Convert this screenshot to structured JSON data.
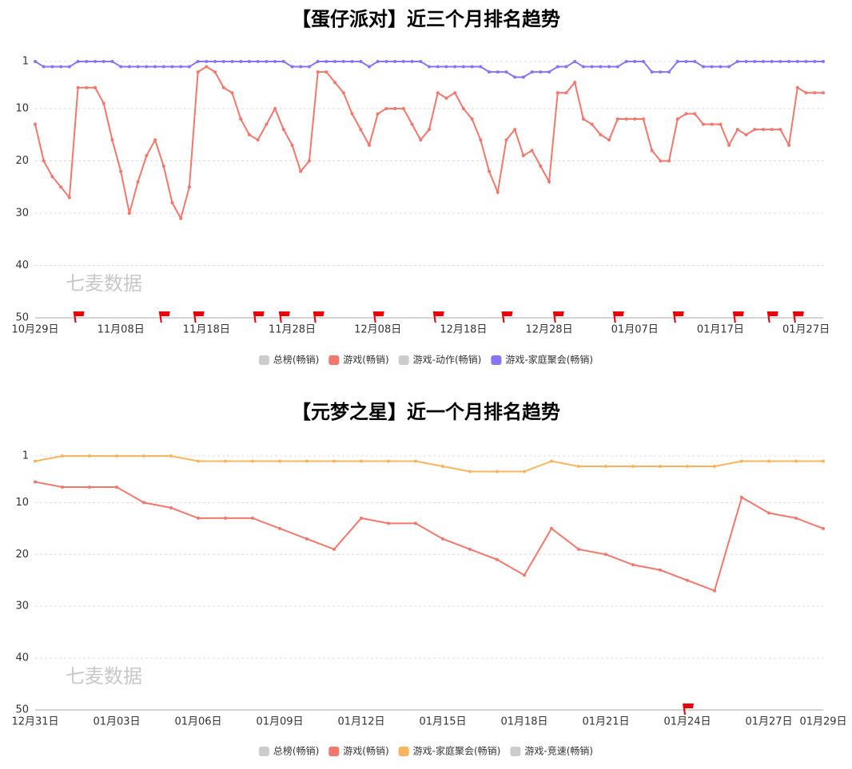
{
  "chart_data": [
    {
      "type": "line",
      "title": "【蛋仔派对】近三个月排名趋势",
      "watermark": "七麦数据",
      "categories": [
        "10月29日",
        null,
        null,
        null,
        null,
        null,
        null,
        null,
        null,
        null,
        "11月08日",
        null,
        null,
        null,
        null,
        null,
        null,
        null,
        null,
        null,
        "11月18日",
        null,
        null,
        null,
        null,
        null,
        null,
        null,
        null,
        null,
        "11月28日",
        null,
        null,
        null,
        null,
        null,
        null,
        null,
        null,
        null,
        "12月08日",
        null,
        null,
        null,
        null,
        null,
        null,
        null,
        null,
        null,
        "12月18日",
        null,
        null,
        null,
        null,
        null,
        null,
        null,
        null,
        null,
        "12月28日",
        null,
        null,
        null,
        null,
        null,
        null,
        null,
        null,
        null,
        "01月07日",
        null,
        null,
        null,
        null,
        null,
        null,
        null,
        null,
        null,
        "01月17日",
        null,
        null,
        null,
        null,
        null,
        null,
        null,
        null,
        null,
        "01月27日",
        null,
        null
      ],
      "series": [
        {
          "name": "总榜(畅销)",
          "color": "#cccccc",
          "visible": false
        },
        {
          "name": "游戏(畅销)",
          "color": "#f4776c",
          "visible": true,
          "values": [
            13,
            20,
            23,
            25,
            27,
            6,
            6,
            6,
            9,
            16,
            22,
            30,
            24,
            19,
            16,
            21,
            28,
            31,
            25,
            3,
            2,
            3,
            6,
            7,
            12,
            15,
            16,
            13,
            10,
            14,
            17,
            22,
            20,
            3,
            3,
            5,
            7,
            11,
            14,
            17,
            11,
            10,
            10,
            10,
            13,
            16,
            14,
            7,
            8,
            7,
            10,
            12,
            16,
            22,
            26,
            16,
            14,
            19,
            18,
            21,
            24,
            7,
            7,
            5,
            12,
            13,
            15,
            16,
            12,
            12,
            12,
            12,
            18,
            20,
            20,
            12,
            11,
            11,
            13,
            13,
            13,
            17,
            14,
            15,
            14,
            14,
            14,
            14,
            17,
            6,
            7,
            7,
            7
          ]
        },
        {
          "name": "游戏-动作(畅销)",
          "color": "#cccccc",
          "visible": false
        },
        {
          "name": "游戏-家庭聚会(畅销)",
          "color": "#8676f6",
          "visible": true,
          "values": [
            1,
            2,
            2,
            2,
            2,
            1,
            1,
            1,
            1,
            1,
            2,
            2,
            2,
            2,
            2,
            2,
            2,
            2,
            2,
            1,
            1,
            1,
            1,
            1,
            1,
            1,
            1,
            1,
            1,
            1,
            2,
            2,
            2,
            1,
            1,
            1,
            1,
            1,
            1,
            2,
            1,
            1,
            1,
            1,
            1,
            1,
            2,
            2,
            2,
            2,
            2,
            2,
            2,
            3,
            3,
            3,
            4,
            4,
            3,
            3,
            3,
            2,
            2,
            1,
            2,
            2,
            2,
            2,
            2,
            1,
            1,
            1,
            3,
            3,
            3,
            1,
            1,
            1,
            2,
            2,
            2,
            2,
            1,
            1,
            1,
            1,
            1,
            1,
            1,
            1,
            1,
            1,
            1
          ]
        }
      ],
      "ylim": [
        1,
        50
      ],
      "yticks": [
        1,
        10,
        20,
        30,
        40,
        50
      ],
      "y_inverted": true,
      "grid": true,
      "legend_position": "bottom",
      "flags": [
        5,
        15,
        19,
        26,
        29,
        33,
        40,
        47,
        55,
        61,
        68,
        75,
        82,
        86,
        89
      ],
      "flag_color": "#e8000b"
    },
    {
      "type": "line",
      "title": "【元梦之星】近一个月排名趋势",
      "watermark": "七麦数据",
      "categories": [
        "12月31日",
        null,
        null,
        "01月03日",
        null,
        null,
        "01月06日",
        null,
        null,
        "01月09日",
        null,
        null,
        "01月12日",
        null,
        null,
        "01月15日",
        null,
        null,
        "01月18日",
        null,
        null,
        "01月21日",
        null,
        null,
        "01月24日",
        null,
        null,
        "01月27日",
        null,
        "01月29日"
      ],
      "series": [
        {
          "name": "总榜(畅销)",
          "color": "#cccccc",
          "visible": false
        },
        {
          "name": "游戏(畅销)",
          "color": "#f4776c",
          "visible": true,
          "values": [
            6,
            7,
            7,
            7,
            10,
            11,
            13,
            13,
            13,
            15,
            17,
            19,
            13,
            14,
            14,
            17,
            19,
            21,
            24,
            15,
            19,
            20,
            22,
            23,
            25,
            27,
            9,
            12,
            13,
            15
          ]
        },
        {
          "name": "游戏-家庭聚会(畅销)",
          "color": "#f9b55e",
          "visible": true,
          "values": [
            2,
            1,
            1,
            1,
            1,
            1,
            2,
            2,
            2,
            2,
            2,
            2,
            2,
            2,
            2,
            3,
            4,
            4,
            4,
            2,
            3,
            3,
            3,
            3,
            3,
            3,
            2,
            2,
            2,
            2
          ]
        },
        {
          "name": "游戏-竞速(畅销)",
          "color": "#cccccc",
          "visible": false
        }
      ],
      "ylim": [
        1,
        50
      ],
      "yticks": [
        1,
        10,
        20,
        30,
        40,
        50
      ],
      "y_inverted": true,
      "grid": true,
      "legend_position": "bottom",
      "flags": [
        24
      ],
      "flag_color": "#e8000b"
    }
  ]
}
